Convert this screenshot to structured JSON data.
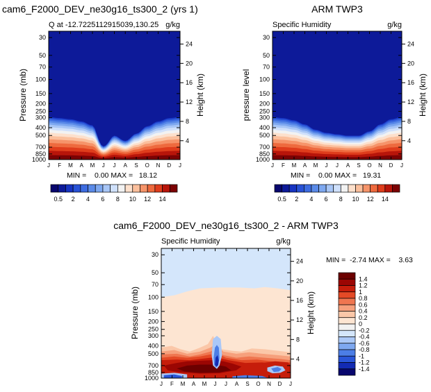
{
  "colors": {
    "q_levels": [
      "#08076e",
      "#0d1a99",
      "#1734c2",
      "#2852d6",
      "#3d6ce0",
      "#5a8ae8",
      "#7ea8f0",
      "#a8c6f6",
      "#cfe0fb",
      "#f2f2f2",
      "#fde0cc",
      "#fbbf9c",
      "#f6946a",
      "#ee6a3e",
      "#df3d1c",
      "#b8150a",
      "#7c0204"
    ],
    "diff_levels": [
      "#08076e",
      "#132bb3",
      "#2a56d8",
      "#4c7ee6",
      "#7ea8f0",
      "#abc8f7",
      "#d4e6fb",
      "#f2f2f2",
      "#fde5d2",
      "#fbc7a8",
      "#f6a07c",
      "#ef7650",
      "#e44a26",
      "#c61d0b",
      "#9b0603",
      "#6c0000"
    ]
  },
  "chart_data": [
    {
      "type": "heatmap",
      "title": "cam6_F2000_DEV_ne30g16_ts300_2 (yrs 1)",
      "subtitle_left": "Q at -12.7225112915039,130.25",
      "subtitle_right": "g/kg",
      "ylabel": "Pressure (mb)",
      "ylabel_right": "Height (km)",
      "x_ticks": [
        "J",
        "F",
        "M",
        "A",
        "M",
        "J",
        "J",
        "A",
        "S",
        "O",
        "N",
        "D",
        "J"
      ],
      "y_ticks": [
        "30",
        "50",
        "70",
        "100",
        "150",
        "200",
        "250",
        "300",
        "400",
        "500",
        "700",
        "850",
        "1000"
      ],
      "right_ticks": [
        "24",
        "20",
        "16",
        "12",
        "8",
        "4"
      ],
      "stats": "MIN =    0.00 MAX =   18.12",
      "colorbar_labels": [
        "0.5",
        "2",
        "4",
        "6",
        "8",
        "10",
        "12",
        "14"
      ],
      "moist_top_by_month": [
        290,
        300,
        310,
        330,
        370,
        680,
        500,
        580,
        470,
        380,
        330,
        300,
        290
      ]
    },
    {
      "type": "heatmap",
      "title": "ARM TWP3",
      "subtitle_left": "Specific Humidity",
      "subtitle_right": "g/kg",
      "ylabel": "pressure level",
      "ylabel_right": "Height (km)",
      "x_ticks": [
        "J",
        "F",
        "M",
        "A",
        "M",
        "J",
        "J",
        "A",
        "S",
        "O",
        "N",
        "D",
        "J"
      ],
      "y_ticks": [
        "30",
        "50",
        "70",
        "100",
        "150",
        "200",
        "250",
        "300",
        "400",
        "500",
        "700",
        "850",
        "1000"
      ],
      "right_ticks": [
        "24",
        "20",
        "16",
        "12",
        "8",
        "4"
      ],
      "stats": "MIN =    0.00 MAX =   19.31",
      "colorbar_labels": [
        "0.5",
        "2",
        "4",
        "6",
        "8",
        "10",
        "12",
        "14"
      ],
      "moist_top_by_month": [
        290,
        300,
        320,
        360,
        420,
        460,
        480,
        500,
        500,
        440,
        360,
        310,
        290
      ]
    },
    {
      "type": "heatmap",
      "title": "cam6_F2000_DEV_ne30g16_ts300_2 - ARM TWP3",
      "subtitle_left": "Specific Humidity",
      "subtitle_right": "g/kg",
      "ylabel": "Pressure (mb)",
      "ylabel_right": "Height (km)",
      "x_ticks": [
        "J",
        "F",
        "M",
        "A",
        "M",
        "J",
        "J",
        "A",
        "S",
        "O",
        "N",
        "D",
        "J"
      ],
      "y_ticks": [
        "30",
        "50",
        "70",
        "100",
        "150",
        "200",
        "250",
        "300",
        "400",
        "500",
        "700",
        "850",
        "1000"
      ],
      "right_ticks": [
        "24",
        "20",
        "16",
        "12",
        "8",
        "4"
      ],
      "stats": "MIN =  -2.74 MAX =    3.63",
      "colorbar_labels": [
        "1.4",
        "1.2",
        "1",
        "0.8",
        "0.6",
        "0.4",
        "0.2",
        "0",
        "-0.2",
        "-0.4",
        "-0.6",
        "-0.8",
        "-1",
        "-1.2",
        "-1.4"
      ]
    }
  ]
}
